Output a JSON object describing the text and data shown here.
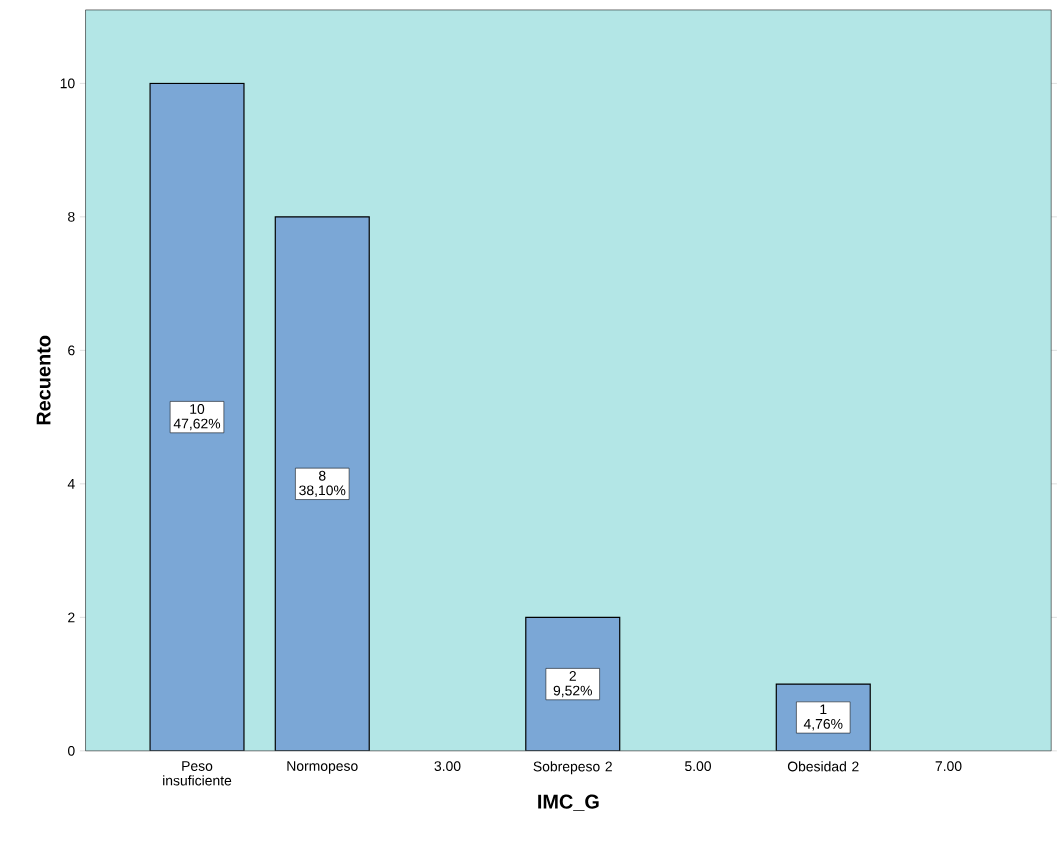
{
  "chart_data": {
    "type": "bar",
    "xlabel": "IMC_G",
    "ylabel": "Recuento",
    "categories": [
      "Peso insuficiente",
      "Normopeso",
      "3.00",
      "Sobrepeso 2",
      "5.00",
      "Obesidad 2",
      "7.00"
    ],
    "values": [
      10,
      8,
      null,
      2,
      null,
      1,
      null
    ],
    "value_labels": [
      "10 47,62%",
      "8 38,10%",
      null,
      "2 9,52%",
      null,
      "1 4,76%",
      null
    ],
    "color": "#7ba7d6",
    "ylim": [
      0,
      11.1
    ],
    "yticks": [
      0,
      2,
      4,
      6,
      8,
      10
    ]
  }
}
